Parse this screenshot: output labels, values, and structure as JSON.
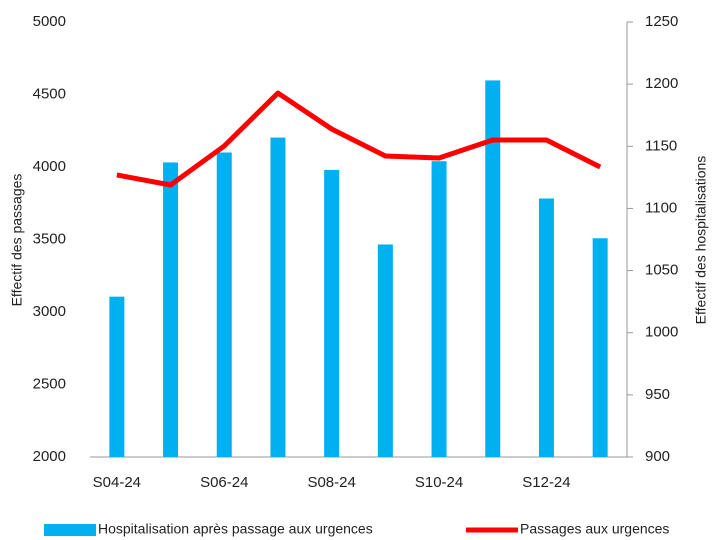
{
  "chart_data": {
    "type": "bar-line",
    "categories": [
      "S04-24",
      null,
      "S06-24",
      null,
      "S08-24",
      null,
      "S10-24",
      null,
      "S12-24",
      null
    ],
    "ylabel": "Effectif des passages",
    "y2label": "Effectif des hospitalisations",
    "ylim": [
      2000,
      5000
    ],
    "yticks": [
      2000,
      2500,
      3000,
      3500,
      4000,
      4500,
      5000
    ],
    "y2lim": [
      900,
      1250
    ],
    "y2ticks": [
      900,
      950,
      1000,
      1050,
      1100,
      1150,
      1200,
      1250
    ],
    "legend": "bottom",
    "series": [
      {
        "name": "Hospitalisation après passage aux urgences",
        "type": "bar",
        "axis": "y2",
        "color": "#00b0f0",
        "values": [
          1029,
          1137,
          1145,
          1157,
          1131,
          1071,
          1138,
          1203,
          1108,
          1076
        ]
      },
      {
        "name": "Passages aux urgences",
        "type": "line",
        "axis": "y",
        "color": "#ff0000",
        "values": [
          3945,
          3876,
          4145,
          4510,
          4262,
          4076,
          4062,
          4186,
          4186,
          4000
        ]
      }
    ]
  }
}
